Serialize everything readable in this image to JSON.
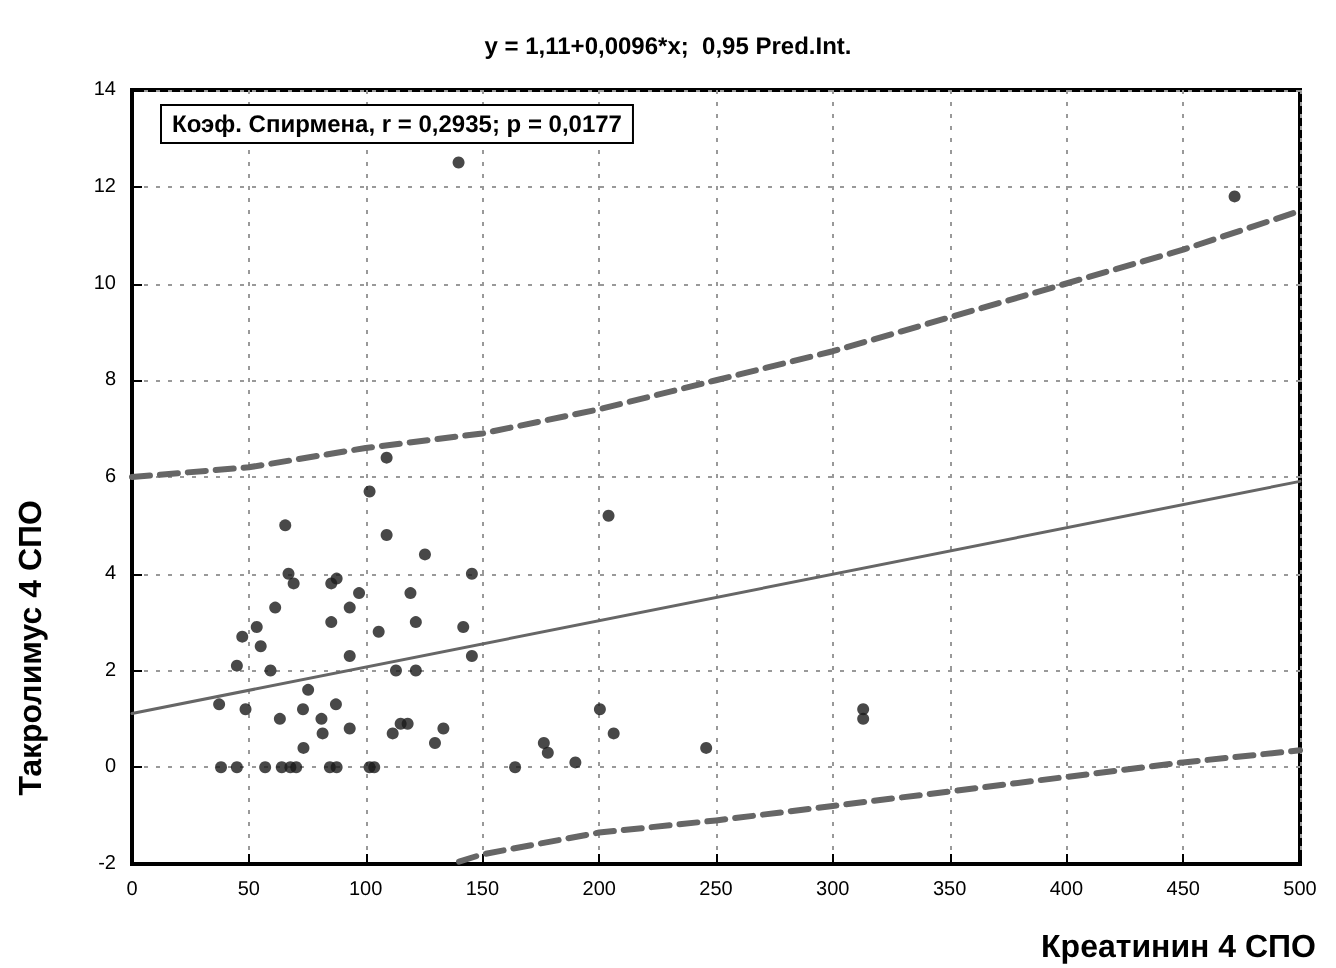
{
  "chart_data": {
    "type": "scatter",
    "title": "y = 1,11+0,0096*x;  0,95 Pred.Int.",
    "xlabel": "Креатинин 4 СПО",
    "ylabel": "Такролимус 4 СПО",
    "annotations": [
      "Коэф. Спирмена, r = 0,2935; p = 0,0177"
    ],
    "xlim": [
      0,
      500
    ],
    "xticks": [
      0,
      50,
      100,
      150,
      200,
      250,
      300,
      350,
      400,
      450,
      500
    ],
    "ylim": [
      -2,
      14
    ],
    "yticks": [
      -2,
      0,
      2,
      4,
      6,
      8,
      10,
      12,
      14
    ],
    "grid": true,
    "series": [
      {
        "marker": "circle",
        "color": "#1a1a1a",
        "x": [
          109,
          101.7,
          65.6,
          109,
          125.4,
          67,
          69.2,
          145.5,
          85.3,
          87.6,
          97.2,
          119.2,
          61.3,
          93.2,
          85.3,
          121.5,
          47.2,
          53.4,
          55.1,
          105.6,
          141.8,
          145.5,
          93.2,
          44.9,
          59.3,
          113,
          121.5,
          75.4,
          37.3,
          48.6,
          87.3,
          73.2,
          63.3,
          81.1,
          81.6,
          93.2,
          111.6,
          115,
          118,
          133.3,
          129.7,
          73.4,
          38.1,
          44.9,
          57,
          64.1,
          67.8,
          70.3,
          84.7,
          87.6,
          101.7,
          103.7,
          164,
          139.8,
          204,
          176.3,
          178,
          189.8,
          200.3,
          206.2,
          245.8,
          313,
          313,
          472
        ],
        "values": [
          6.4,
          5.7,
          5,
          4.8,
          4.4,
          4,
          3.8,
          4,
          3.8,
          3.9,
          3.6,
          3.6,
          3.3,
          3.3,
          3,
          3,
          2.7,
          2.9,
          2.5,
          2.8,
          2.9,
          2.3,
          2.3,
          2.1,
          2,
          2,
          2,
          1.6,
          1.3,
          1.2,
          1.3,
          1.2,
          1,
          1,
          0.7,
          0.8,
          0.7,
          0.9,
          0.9,
          0.8,
          0.5,
          0.4,
          0,
          0,
          0,
          0,
          0,
          0,
          0,
          0,
          0,
          0,
          0,
          12.5,
          5.2,
          0.5,
          0.3,
          0.1,
          1.2,
          0.7,
          0.4,
          1.2,
          1,
          11.8
        ]
      },
      {
        "type": "line",
        "marker": "none",
        "line_style": "solid",
        "color": "#666666",
        "x": [
          0,
          500
        ],
        "values": [
          1.11,
          5.91
        ]
      },
      {
        "type": "line",
        "marker": "none",
        "line_style": "dashed",
        "color": "#666666",
        "x": [
          0,
          50,
          100,
          150,
          200,
          250,
          300,
          350,
          400,
          450,
          500
        ],
        "values": [
          6,
          6.2,
          6.6,
          6.9,
          7.4,
          8,
          8.6,
          9.3,
          10,
          10.7,
          11.5
        ]
      },
      {
        "type": "line",
        "marker": "none",
        "line_style": "dashed",
        "color": "#666666",
        "x": [
          140,
          150,
          200,
          250,
          300,
          350,
          400,
          450,
          500
        ],
        "values": [
          -1.95,
          -1.8,
          -1.35,
          -1.1,
          -0.8,
          -0.5,
          -0.2,
          0.1,
          0.35
        ]
      }
    ]
  }
}
